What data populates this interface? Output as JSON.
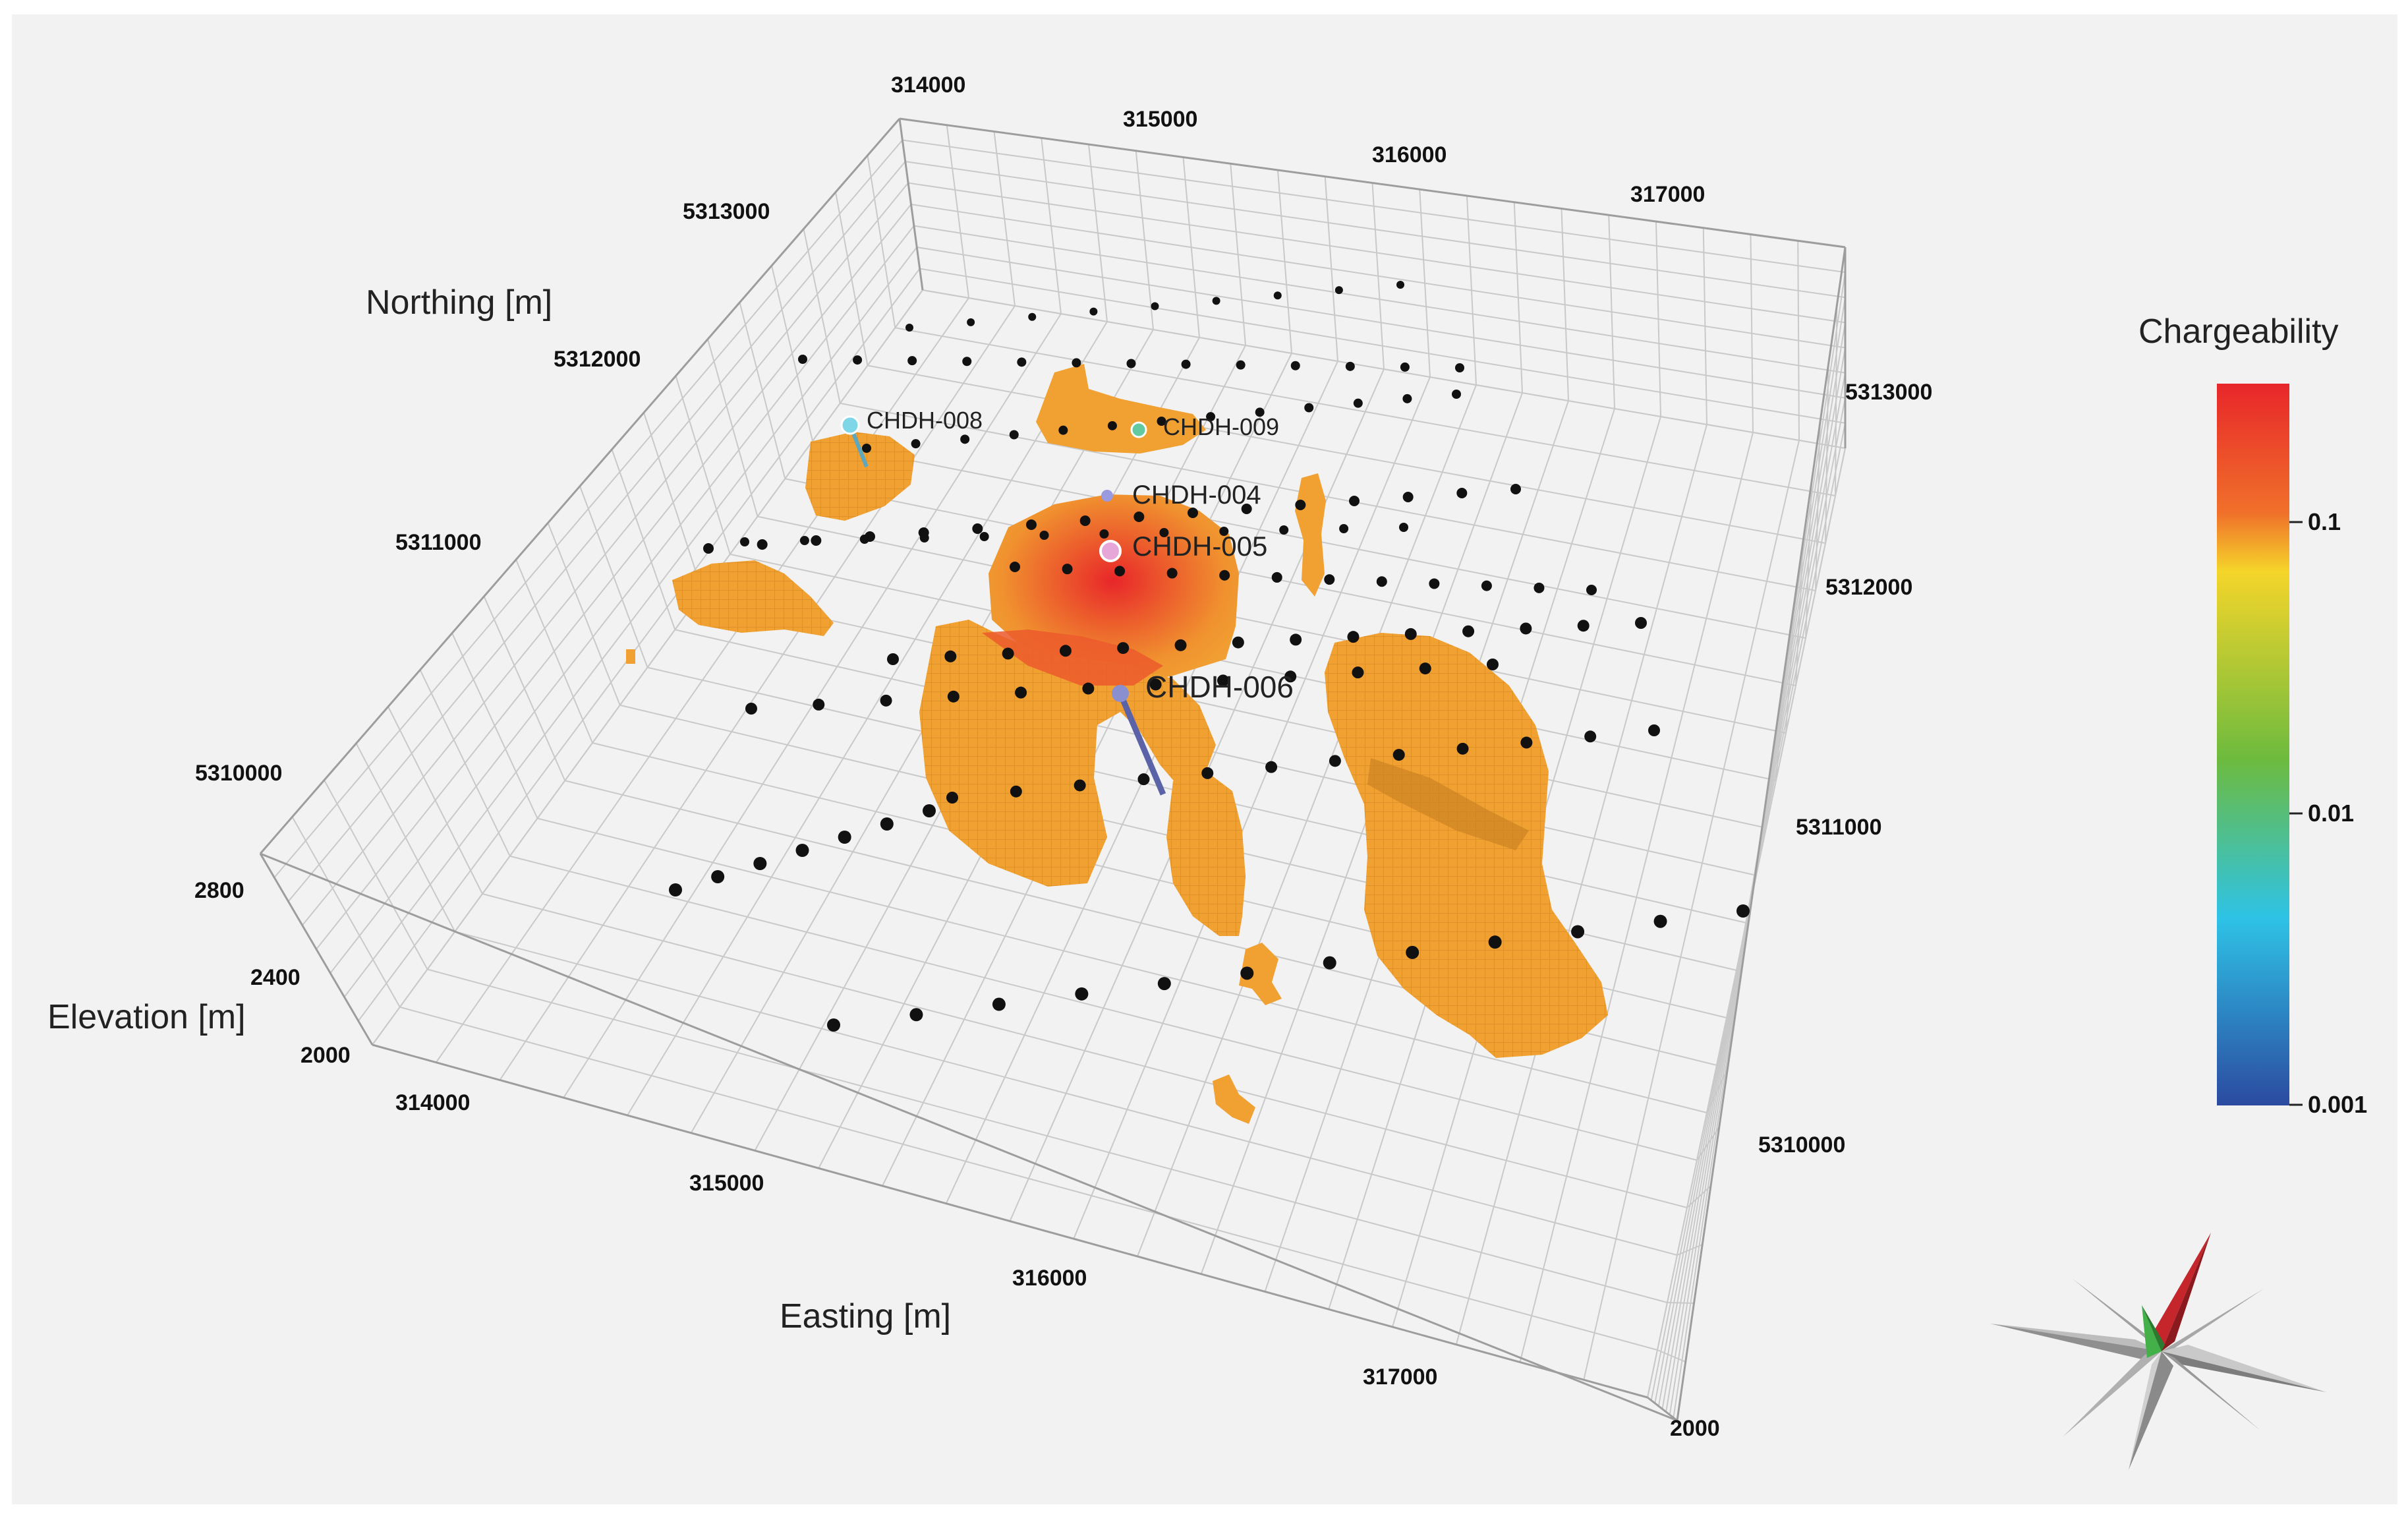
{
  "axes": {
    "northing_title": "Northing [m]",
    "easting_title": "Easting [m]",
    "elevation_title": "Elevation [m]",
    "easting_ticks_top": [
      "314000",
      "315000",
      "316000",
      "317000"
    ],
    "easting_ticks_bottom": [
      "314000",
      "315000",
      "316000",
      "317000"
    ],
    "northing_ticks_left": [
      "5313000",
      "5312000",
      "5311000",
      "5310000"
    ],
    "northing_ticks_right": [
      "5313000",
      "5312000",
      "5311000",
      "5310000"
    ],
    "elevation_ticks": [
      "2800",
      "2400",
      "2000"
    ],
    "elevation_tick_right": "2000"
  },
  "drillholes": [
    {
      "id": "CHDH-008",
      "color": "#7fd6e6"
    },
    {
      "id": "CHDH-009",
      "color": "#63c9a0"
    },
    {
      "id": "CHDH-004",
      "color": "#9a9ae0"
    },
    {
      "id": "CHDH-005",
      "color": "#e6a6d8"
    },
    {
      "id": "CHDH-006",
      "color": "#5b63a8"
    }
  ],
  "legend": {
    "title": "Chargeability",
    "scale": "log",
    "ticks": [
      "0.1",
      "0.01",
      "0.001"
    ],
    "colors": [
      "#e8262a",
      "#f0712a",
      "#f5d52a",
      "#6dbb3e",
      "#2ec3e6",
      "#2b4aa0"
    ]
  },
  "colors": {
    "anomaly": "#f0a132",
    "anomaly_high": "#e8442a",
    "grid": "#c9c9c9",
    "station": "#111111"
  },
  "compass": {
    "icon": "north-arrow-compass-icon"
  }
}
